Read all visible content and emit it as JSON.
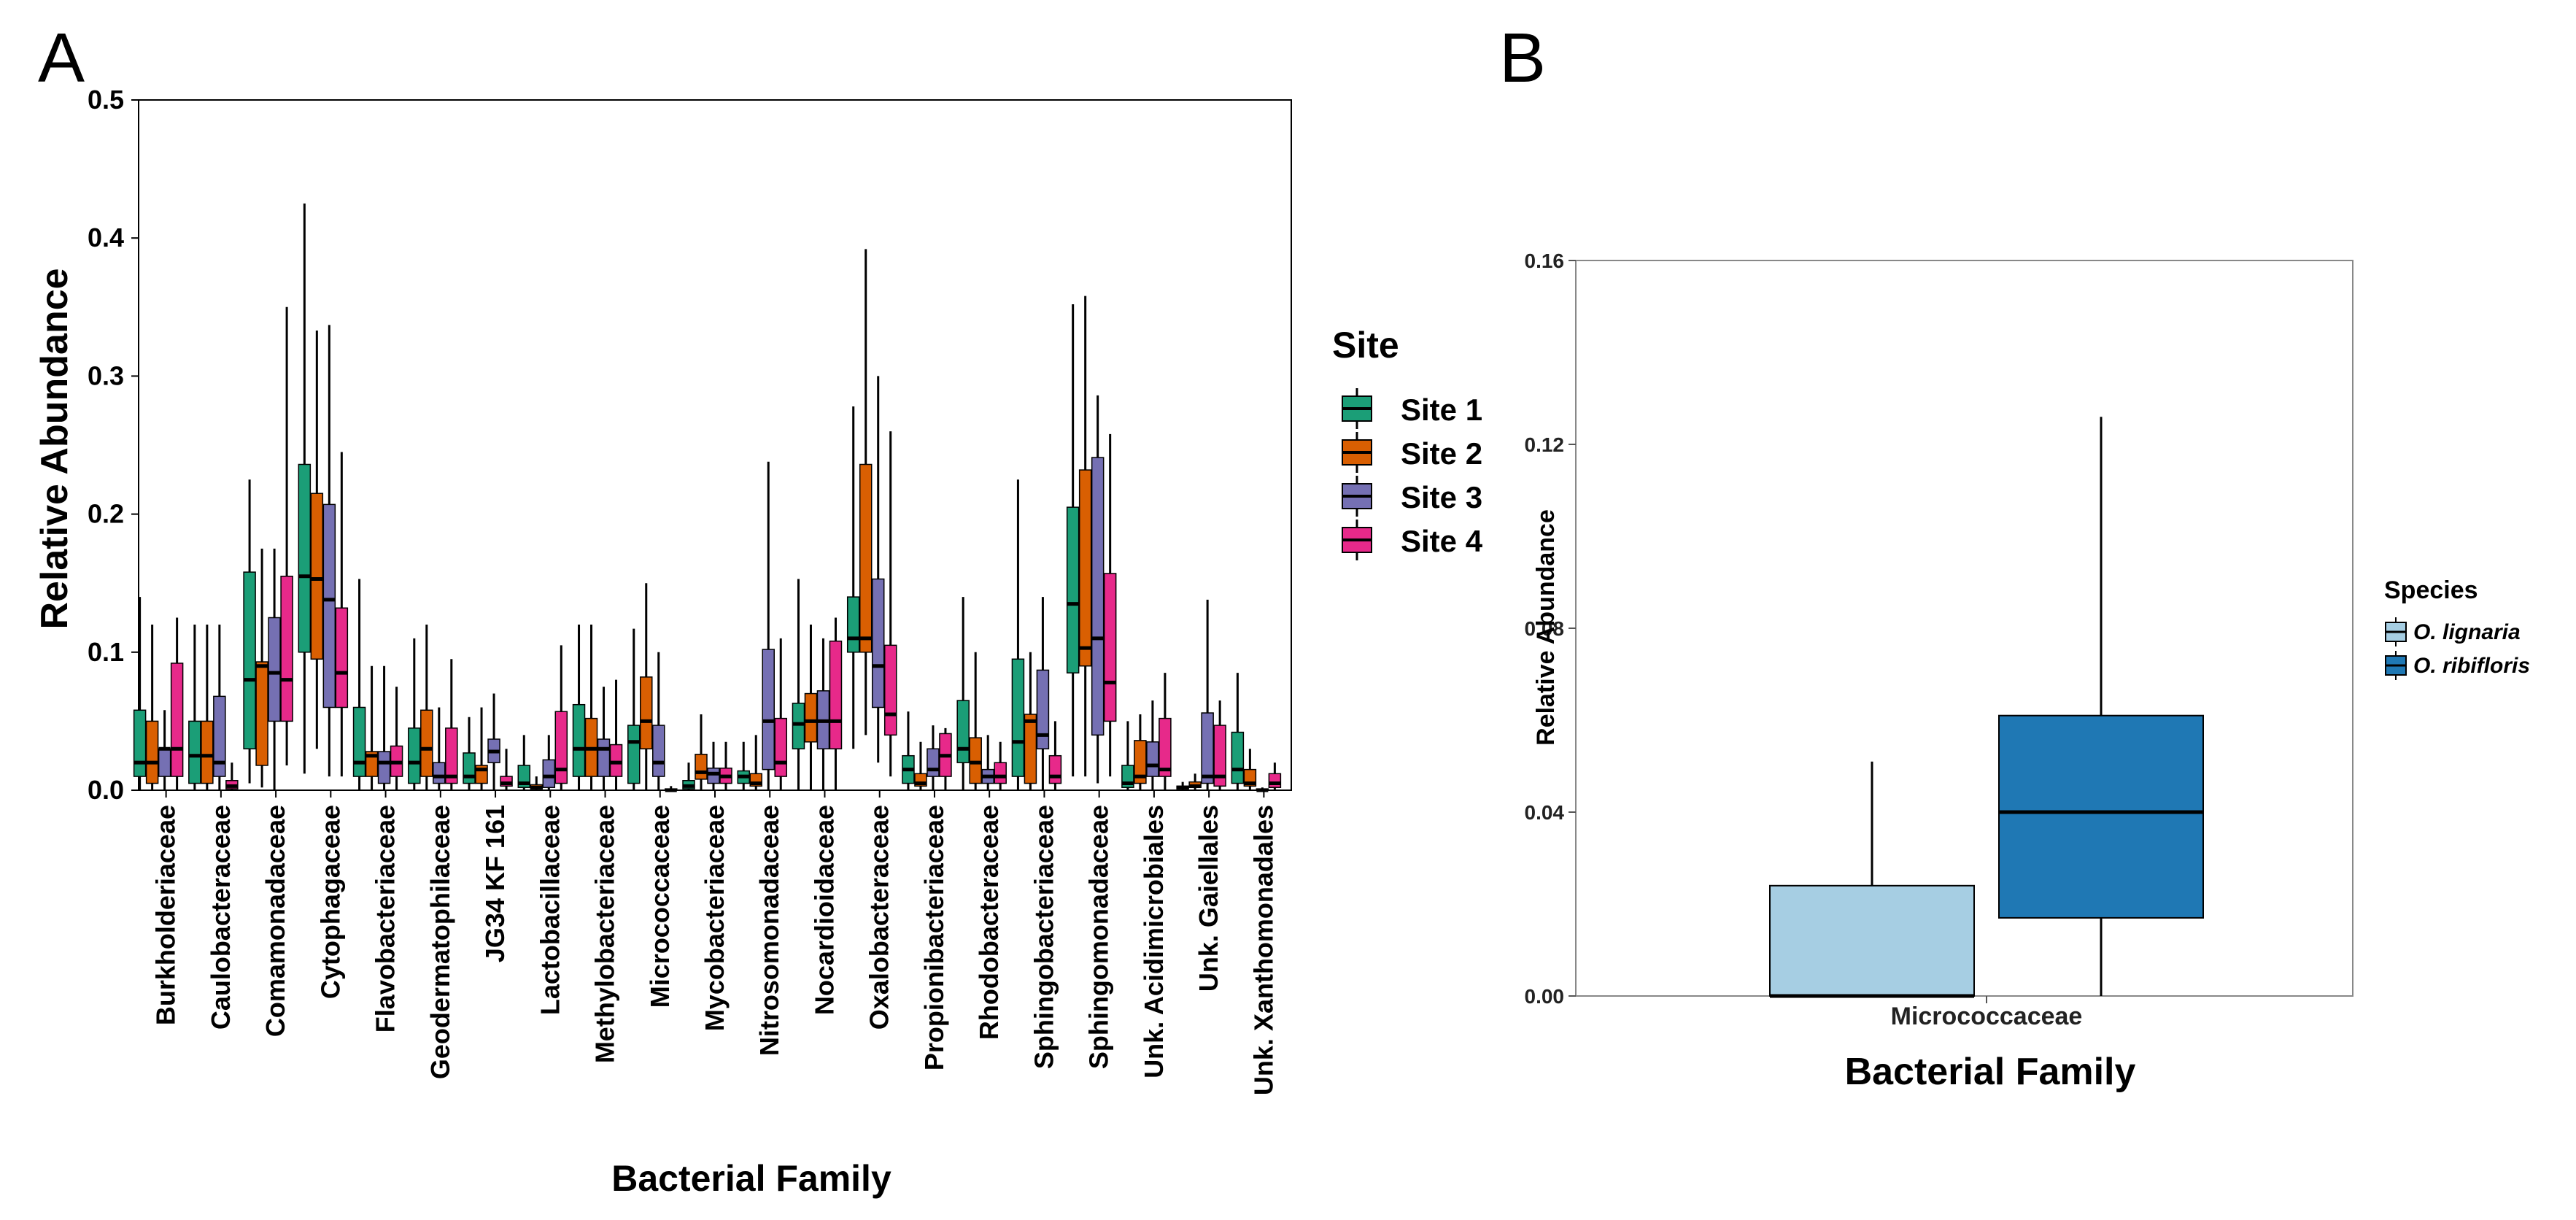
{
  "panels": {
    "a_label": "A",
    "b_label": "B"
  },
  "colors": {
    "site1": "#1B9E77",
    "site2": "#D95F02",
    "site3": "#7570B3",
    "site4": "#E7298A",
    "ol": "#A6CEE3",
    "or": "#1F78B4"
  },
  "chart_data": [
    {
      "type": "boxplot",
      "panel": "A",
      "xlabel": "Bacterial Family",
      "ylabel": "Relative Abundance",
      "ylim": [
        0,
        0.5
      ],
      "yticks": [
        "0.0",
        "0.1",
        "0.2",
        "0.3",
        "0.4",
        "0.5"
      ],
      "legend": {
        "title": "Site",
        "position": "right",
        "entries": [
          "Site 1",
          "Site 2",
          "Site 3",
          "Site 4"
        ]
      },
      "categories": [
        "Burkholderiaceae",
        "Caulobacteraceae",
        "Comamonadaceae",
        "Cytophagaceae",
        "Flavobacteriaceae",
        "Geodermatophilaceae",
        "JG34 KF 161",
        "Lactobacillaceae",
        "Methylobacteriaceae",
        "Micrococcaceae",
        "Mycobacteriaceae",
        "Nitrosomonadaceae",
        "Nocardioidaceae",
        "Oxalobacteraceae",
        "Propionibacteriaceae",
        "Rhodobacteraceae",
        "Sphingobacteriaceae",
        "Sphingomonadaceae",
        "Unk. Acidimicrobiales",
        "Unk. Gaiellales",
        "Unk. Xanthomonadales"
      ],
      "series": [
        {
          "name": "Site 1",
          "boxes": [
            [
              0,
              0.01,
              0.02,
              0.058,
              0.14
            ],
            [
              0,
              0.005,
              0.025,
              0.05,
              0.12
            ],
            [
              0.005,
              0.03,
              0.08,
              0.158,
              0.225
            ],
            [
              0.012,
              0.1,
              0.155,
              0.236,
              0.425
            ],
            [
              0,
              0.01,
              0.02,
              0.06,
              0.153
            ],
            [
              0,
              0.005,
              0.02,
              0.045,
              0.11
            ],
            [
              0,
              0.005,
              0.01,
              0.027,
              0.053
            ],
            [
              0,
              0.002,
              0.005,
              0.018,
              0.04
            ],
            [
              0,
              0.01,
              0.03,
              0.062,
              0.12
            ],
            [
              0,
              0.005,
              0.035,
              0.047,
              0.117
            ],
            [
              0,
              0.001,
              0.003,
              0.007,
              0.02
            ],
            [
              0,
              0.005,
              0.01,
              0.014,
              0.035
            ],
            [
              0,
              0.03,
              0.048,
              0.063,
              0.153
            ],
            [
              0.03,
              0.1,
              0.11,
              0.14,
              0.278
            ],
            [
              0,
              0.005,
              0.015,
              0.025,
              0.057
            ],
            [
              0,
              0.02,
              0.03,
              0.065,
              0.14
            ],
            [
              0,
              0.01,
              0.035,
              0.095,
              0.225
            ],
            [
              0.01,
              0.085,
              0.135,
              0.205,
              0.352
            ],
            [
              0,
              0.002,
              0.005,
              0.018,
              0.05
            ],
            [
              0,
              0.001,
              0.002,
              0.003,
              0.006
            ],
            [
              0,
              0.005,
              0.015,
              0.042,
              0.085
            ]
          ]
        },
        {
          "name": "Site 2",
          "boxes": [
            [
              0,
              0.005,
              0.02,
              0.05,
              0.12
            ],
            [
              0,
              0.005,
              0.025,
              0.05,
              0.12
            ],
            [
              0.002,
              0.018,
              0.09,
              0.093,
              0.175
            ],
            [
              0.03,
              0.095,
              0.153,
              0.215,
              0.333
            ],
            [
              0,
              0.01,
              0.025,
              0.028,
              0.09
            ],
            [
              0,
              0.01,
              0.03,
              0.058,
              0.12
            ],
            [
              0,
              0.005,
              0.015,
              0.018,
              0.06
            ],
            [
              0,
              0.001,
              0.002,
              0.004,
              0.01
            ],
            [
              0,
              0.01,
              0.03,
              0.052,
              0.12
            ],
            [
              0,
              0.03,
              0.05,
              0.082,
              0.15
            ],
            [
              0,
              0.008,
              0.013,
              0.026,
              0.055
            ],
            [
              0,
              0.003,
              0.005,
              0.012,
              0.04
            ],
            [
              0,
              0.035,
              0.05,
              0.07,
              0.12
            ],
            [
              0.04,
              0.1,
              0.11,
              0.236,
              0.392
            ],
            [
              0,
              0.003,
              0.005,
              0.012,
              0.035
            ],
            [
              0,
              0.005,
              0.02,
              0.038,
              0.1
            ],
            [
              0,
              0.005,
              0.05,
              0.055,
              0.1
            ],
            [
              0.01,
              0.09,
              0.103,
              0.232,
              0.358
            ],
            [
              0,
              0.005,
              0.01,
              0.036,
              0.055
            ],
            [
              0,
              0.002,
              0.003,
              0.006,
              0.012
            ],
            [
              0,
              0.003,
              0.005,
              0.015,
              0.03
            ]
          ]
        },
        {
          "name": "Site 3",
          "boxes": [
            [
              0,
              0.01,
              0.03,
              0.03,
              0.058
            ],
            [
              0,
              0.01,
              0.02,
              0.068,
              0.12
            ],
            [
              0,
              0.05,
              0.085,
              0.125,
              0.175
            ],
            [
              0.01,
              0.06,
              0.138,
              0.207,
              0.337
            ],
            [
              0,
              0.005,
              0.02,
              0.028,
              0.09
            ],
            [
              0,
              0.005,
              0.01,
              0.02,
              0.06
            ],
            [
              0,
              0.02,
              0.028,
              0.037,
              0.07
            ],
            [
              0,
              0.002,
              0.01,
              0.022,
              0.04
            ],
            [
              0,
              0.01,
              0.03,
              0.037,
              0.075
            ],
            [
              0,
              0.01,
              0.02,
              0.047,
              0.1
            ],
            [
              0,
              0.005,
              0.012,
              0.016,
              0.035
            ],
            [
              0,
              0.015,
              0.05,
              0.102,
              0.238
            ],
            [
              0,
              0.03,
              0.05,
              0.072,
              0.11
            ],
            [
              0.02,
              0.06,
              0.09,
              0.153,
              0.3
            ],
            [
              0,
              0.01,
              0.015,
              0.03,
              0.047
            ],
            [
              0,
              0.005,
              0.01,
              0.015,
              0.04
            ],
            [
              0,
              0.03,
              0.04,
              0.087,
              0.14
            ],
            [
              0.005,
              0.04,
              0.11,
              0.241,
              0.286
            ],
            [
              0,
              0.01,
              0.018,
              0.035,
              0.065
            ],
            [
              0,
              0.005,
              0.01,
              0.056,
              0.138
            ],
            [
              0,
              0,
              0,
              0.001,
              0.002
            ]
          ]
        },
        {
          "name": "Site 4",
          "boxes": [
            [
              0,
              0.01,
              0.03,
              0.092,
              0.125
            ],
            [
              0,
              0.001,
              0.003,
              0.007,
              0.02
            ],
            [
              0.018,
              0.05,
              0.08,
              0.155,
              0.35
            ],
            [
              0.01,
              0.06,
              0.085,
              0.132,
              0.245
            ],
            [
              0,
              0.01,
              0.02,
              0.032,
              0.075
            ],
            [
              0,
              0.005,
              0.01,
              0.045,
              0.095
            ],
            [
              0,
              0.003,
              0.005,
              0.01,
              0.03
            ],
            [
              0,
              0.005,
              0.015,
              0.057,
              0.105
            ],
            [
              0,
              0.01,
              0.02,
              0.033,
              0.08
            ],
            [
              0,
              0,
              0,
              0.001,
              0.003
            ],
            [
              0,
              0.005,
              0.01,
              0.016,
              0.035
            ],
            [
              0,
              0.01,
              0.02,
              0.052,
              0.11
            ],
            [
              0,
              0.03,
              0.05,
              0.108,
              0.125
            ],
            [
              0.01,
              0.04,
              0.055,
              0.105,
              0.26
            ],
            [
              0,
              0.01,
              0.025,
              0.041,
              0.045
            ],
            [
              0,
              0.005,
              0.01,
              0.02,
              0.035
            ],
            [
              0,
              0.005,
              0.01,
              0.025,
              0.05
            ],
            [
              0.01,
              0.05,
              0.078,
              0.157,
              0.258
            ],
            [
              0,
              0.01,
              0.015,
              0.052,
              0.085
            ],
            [
              0,
              0.003,
              0.01,
              0.047,
              0.065
            ],
            [
              0,
              0.002,
              0.005,
              0.012,
              0.02
            ]
          ]
        }
      ]
    },
    {
      "type": "boxplot",
      "panel": "B",
      "xlabel": "Bacterial Family",
      "ylabel": "Relative Abundance",
      "ylim": [
        0,
        0.16
      ],
      "yticks": [
        "0.00",
        "0.04",
        "0.08",
        "0.12",
        "0.16"
      ],
      "categories": [
        "Micrococcaceae"
      ],
      "legend": {
        "title": "Species",
        "position": "right",
        "entries": [
          "O. lignaria",
          "O. ribifloris"
        ]
      },
      "series": [
        {
          "name": "O. lignaria",
          "box": [
            0,
            0,
            0,
            0.024,
            0.051
          ]
        },
        {
          "name": "O. ribifloris",
          "box": [
            0,
            0.017,
            0.04,
            0.061,
            0.126
          ]
        }
      ]
    }
  ]
}
